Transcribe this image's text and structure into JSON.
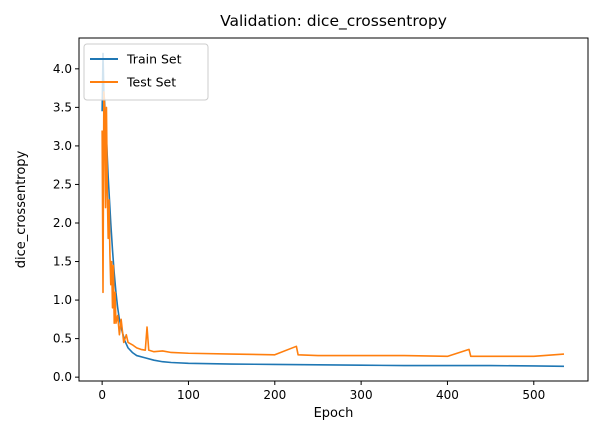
{
  "chart_data": {
    "type": "line",
    "title": "Validation: dice_crossentropy",
    "xlabel": "Epoch",
    "ylabel": "dice_crossentropy",
    "xlim": [
      -26.8,
      562.8
    ],
    "ylim": [
      -0.05,
      4.4
    ],
    "xticks": [
      0,
      100,
      200,
      300,
      400,
      500
    ],
    "xtick_labels": [
      "0",
      "100",
      "200",
      "300",
      "400",
      "500"
    ],
    "yticks": [
      0.0,
      0.5,
      1.0,
      1.5,
      2.0,
      2.5,
      3.0,
      3.5,
      4.0
    ],
    "ytick_labels": [
      "0.0",
      "0.5",
      "1.0",
      "1.5",
      "2.0",
      "2.5",
      "3.0",
      "3.5",
      "4.0"
    ],
    "grid": false,
    "legend_position": "top-left",
    "series": [
      {
        "name": "Train Set",
        "color": "#1f77b4",
        "points": [
          [
            0,
            3.45
          ],
          [
            1,
            4.2
          ],
          [
            2,
            3.7
          ],
          [
            3,
            3.55
          ],
          [
            4,
            3.3
          ],
          [
            5,
            3.1
          ],
          [
            6,
            2.85
          ],
          [
            7,
            2.6
          ],
          [
            8,
            2.4
          ],
          [
            9,
            2.2
          ],
          [
            10,
            2.0
          ],
          [
            12,
            1.65
          ],
          [
            14,
            1.35
          ],
          [
            16,
            1.1
          ],
          [
            18,
            0.9
          ],
          [
            20,
            0.75
          ],
          [
            23,
            0.6
          ],
          [
            26,
            0.48
          ],
          [
            30,
            0.38
          ],
          [
            35,
            0.32
          ],
          [
            40,
            0.28
          ],
          [
            50,
            0.25
          ],
          [
            60,
            0.22
          ],
          [
            70,
            0.2
          ],
          [
            80,
            0.19
          ],
          [
            100,
            0.18
          ],
          [
            150,
            0.17
          ],
          [
            200,
            0.165
          ],
          [
            250,
            0.16
          ],
          [
            300,
            0.155
          ],
          [
            350,
            0.15
          ],
          [
            400,
            0.15
          ],
          [
            450,
            0.15
          ],
          [
            500,
            0.145
          ],
          [
            535,
            0.14
          ]
        ]
      },
      {
        "name": "Test Set",
        "color": "#ff7f0e",
        "points": [
          [
            0,
            3.2
          ],
          [
            1,
            1.1
          ],
          [
            2,
            3.7
          ],
          [
            3,
            3.5
          ],
          [
            4,
            2.2
          ],
          [
            5,
            3.5
          ],
          [
            6,
            2.4
          ],
          [
            7,
            1.8
          ],
          [
            8,
            2.3
          ],
          [
            9,
            1.6
          ],
          [
            10,
            1.2
          ],
          [
            11,
            1.5
          ],
          [
            12,
            0.9
          ],
          [
            13,
            1.45
          ],
          [
            14,
            0.7
          ],
          [
            15,
            1.1
          ],
          [
            16,
            0.7
          ],
          [
            18,
            0.8
          ],
          [
            20,
            0.55
          ],
          [
            22,
            0.75
          ],
          [
            25,
            0.45
          ],
          [
            28,
            0.55
          ],
          [
            30,
            0.45
          ],
          [
            35,
            0.42
          ],
          [
            40,
            0.38
          ],
          [
            45,
            0.36
          ],
          [
            50,
            0.35
          ],
          [
            52,
            0.65
          ],
          [
            54,
            0.35
          ],
          [
            60,
            0.33
          ],
          [
            70,
            0.34
          ],
          [
            80,
            0.32
          ],
          [
            100,
            0.31
          ],
          [
            150,
            0.3
          ],
          [
            200,
            0.29
          ],
          [
            225,
            0.4
          ],
          [
            227,
            0.29
          ],
          [
            250,
            0.28
          ],
          [
            300,
            0.28
          ],
          [
            350,
            0.28
          ],
          [
            400,
            0.27
          ],
          [
            425,
            0.36
          ],
          [
            427,
            0.27
          ],
          [
            450,
            0.27
          ],
          [
            500,
            0.27
          ],
          [
            535,
            0.3
          ]
        ]
      }
    ]
  }
}
